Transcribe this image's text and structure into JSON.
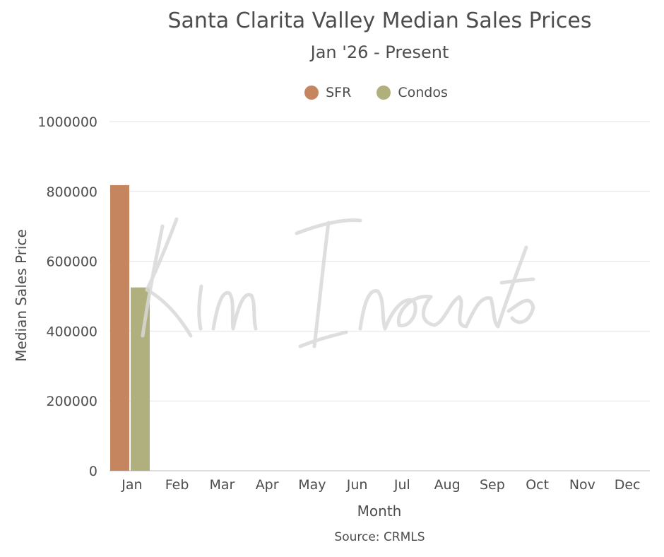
{
  "chart_data": {
    "type": "bar",
    "title": "Santa Clarita Valley Median Sales Prices",
    "subtitle": "Jan '26 - Present",
    "xlabel": "Month",
    "ylabel": "Median Sales Price",
    "categories": [
      "Jan",
      "Feb",
      "Mar",
      "Apr",
      "May",
      "Jun",
      "Jul",
      "Aug",
      "Sep",
      "Oct",
      "Nov",
      "Dec"
    ],
    "series": [
      {
        "name": "SFR",
        "color": "#c5855f",
        "values": [
          818000,
          null,
          null,
          null,
          null,
          null,
          null,
          null,
          null,
          null,
          null,
          null
        ]
      },
      {
        "name": "Condos",
        "color": "#b0b07e",
        "values": [
          525000,
          null,
          null,
          null,
          null,
          null,
          null,
          null,
          null,
          null,
          null,
          null
        ]
      }
    ],
    "ylim": [
      0,
      1000000
    ],
    "yticks": [
      "0",
      "200000",
      "400000",
      "600000",
      "800000",
      "1000000"
    ],
    "grid": true,
    "legend_position": "top-center",
    "source": "Source: CRMLS"
  },
  "watermark": {
    "text": "Kim Inocente"
  }
}
